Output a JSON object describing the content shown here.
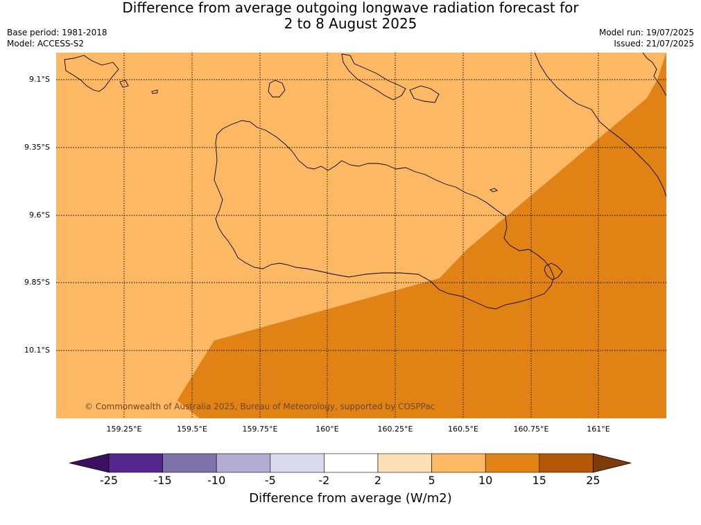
{
  "title_line1": "Difference from average outgoing longwave radiation forecast for",
  "title_line2": "2 to 8 August 2025",
  "base_period": "Base period: 1981-2018",
  "model": "Model: ACCESS-S2",
  "model_run": "Model run: 19/07/2025",
  "issued": "Issued: 21/07/2025",
  "copyright": "© Commonwealth of Australia 2025, Bureau of Meteorology, supported by COSPPac",
  "lat_labels": [
    "9.1°S",
    "9.35°S",
    "9.6°S",
    "9.85°S",
    "10.1°S"
  ],
  "lon_labels": [
    "159.25°E",
    "159.5°E",
    "159.75°E",
    "160°E",
    "160.25°E",
    "160.5°E",
    "160.75°E",
    "161°E"
  ],
  "colorbar": {
    "label": "Difference from average (W/m2)",
    "ticks": [
      "-25",
      "-15",
      "-10",
      "-5",
      "-2",
      "2",
      "5",
      "10",
      "15",
      "25"
    ],
    "colors": [
      "#3b1060",
      "#54278f",
      "#8073ac",
      "#b2abd2",
      "#d8daeb",
      "#ffffff",
      "#fee0b6",
      "#fdb863",
      "#e08214",
      "#b35806",
      "#7f3b08"
    ]
  },
  "chart_data": {
    "type": "map",
    "lat_range": [
      9.0,
      10.3
    ],
    "lon_range": [
      159.0,
      161.25
    ],
    "regions": [
      {
        "name": "5 to 10",
        "color": "#fdb863"
      },
      {
        "name": "10 to 15",
        "color": "#e08214"
      }
    ]
  }
}
